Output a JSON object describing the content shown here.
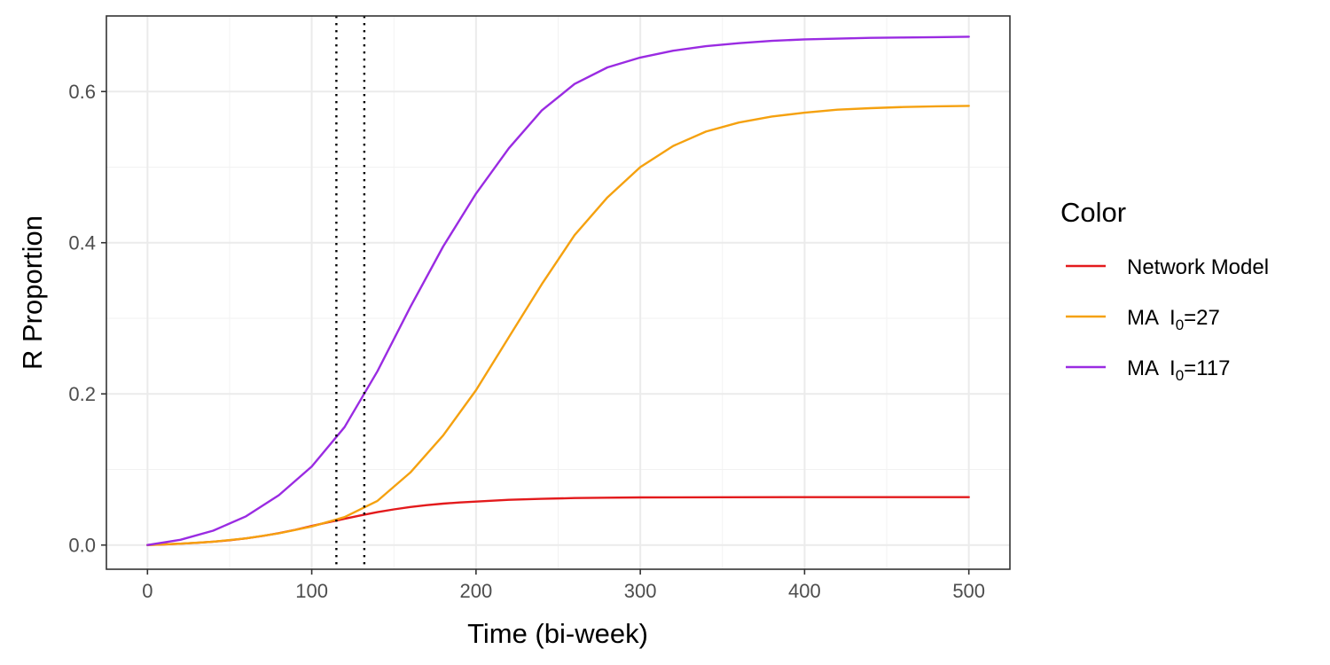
{
  "chart_data": {
    "type": "line",
    "title": "",
    "xlabel": "Time (bi-week)",
    "ylabel": "R Proportion",
    "xlim": [
      -25,
      525
    ],
    "ylim": [
      -0.032,
      0.7
    ],
    "x_ticks": [
      0,
      100,
      200,
      300,
      400,
      500
    ],
    "x_minor_ticks": [
      50,
      150,
      250,
      350,
      450
    ],
    "y_ticks": [
      0.0,
      0.2,
      0.4,
      0.6
    ],
    "y_tick_labels": [
      "0.0",
      "0.2",
      "0.4",
      "0.6"
    ],
    "y_minor_ticks": [
      0.1,
      0.3,
      0.5
    ],
    "grid": true,
    "legend": {
      "title": "Color",
      "position": "right",
      "entries": [
        {
          "text": "Network Model",
          "prefix": "",
          "sub": "",
          "suffix": ""
        },
        {
          "text": "",
          "prefix": "MA  I",
          "sub": "0",
          "suffix": "=27"
        },
        {
          "text": "",
          "prefix": "MA  I",
          "sub": "0",
          "suffix": "=117"
        }
      ]
    },
    "vlines": [
      115,
      132
    ],
    "series": [
      {
        "name": "Network Model",
        "color": "#e31a1c",
        "x": [
          0,
          10,
          20,
          30,
          40,
          50,
          60,
          70,
          80,
          90,
          100,
          110,
          120,
          130,
          140,
          150,
          160,
          170,
          180,
          190,
          200,
          220,
          240,
          260,
          280,
          300,
          350,
          400,
          450,
          500
        ],
        "values": [
          0.0,
          0.0008,
          0.0018,
          0.003,
          0.0045,
          0.0064,
          0.0088,
          0.012,
          0.0158,
          0.0202,
          0.0252,
          0.03,
          0.0348,
          0.0393,
          0.0435,
          0.0472,
          0.0503,
          0.0528,
          0.0548,
          0.0563,
          0.0575,
          0.0598,
          0.0612,
          0.0622,
          0.0627,
          0.063,
          0.0633,
          0.0634,
          0.0634,
          0.0634
        ]
      },
      {
        "name": "MA  I0=27",
        "color": "#f5a10f",
        "x": [
          0,
          20,
          40,
          60,
          80,
          100,
          120,
          140,
          160,
          180,
          200,
          220,
          240,
          260,
          280,
          300,
          320,
          340,
          360,
          380,
          400,
          420,
          440,
          460,
          480,
          500
        ],
        "values": [
          0.0,
          0.0018,
          0.0045,
          0.0088,
          0.0155,
          0.0245,
          0.037,
          0.0585,
          0.096,
          0.145,
          0.205,
          0.275,
          0.345,
          0.41,
          0.46,
          0.5,
          0.528,
          0.547,
          0.559,
          0.567,
          0.572,
          0.576,
          0.578,
          0.5795,
          0.5805,
          0.581
        ]
      },
      {
        "name": "MA  I0=117",
        "color": "#9a2be2",
        "x": [
          0,
          20,
          40,
          60,
          80,
          100,
          120,
          140,
          160,
          180,
          200,
          220,
          240,
          260,
          280,
          300,
          320,
          340,
          360,
          380,
          400,
          420,
          440,
          460,
          480,
          500
        ],
        "values": [
          0.0,
          0.007,
          0.019,
          0.038,
          0.066,
          0.104,
          0.156,
          0.23,
          0.315,
          0.395,
          0.465,
          0.525,
          0.575,
          0.61,
          0.632,
          0.645,
          0.654,
          0.66,
          0.664,
          0.667,
          0.669,
          0.67,
          0.671,
          0.6715,
          0.672,
          0.6725
        ]
      }
    ]
  }
}
